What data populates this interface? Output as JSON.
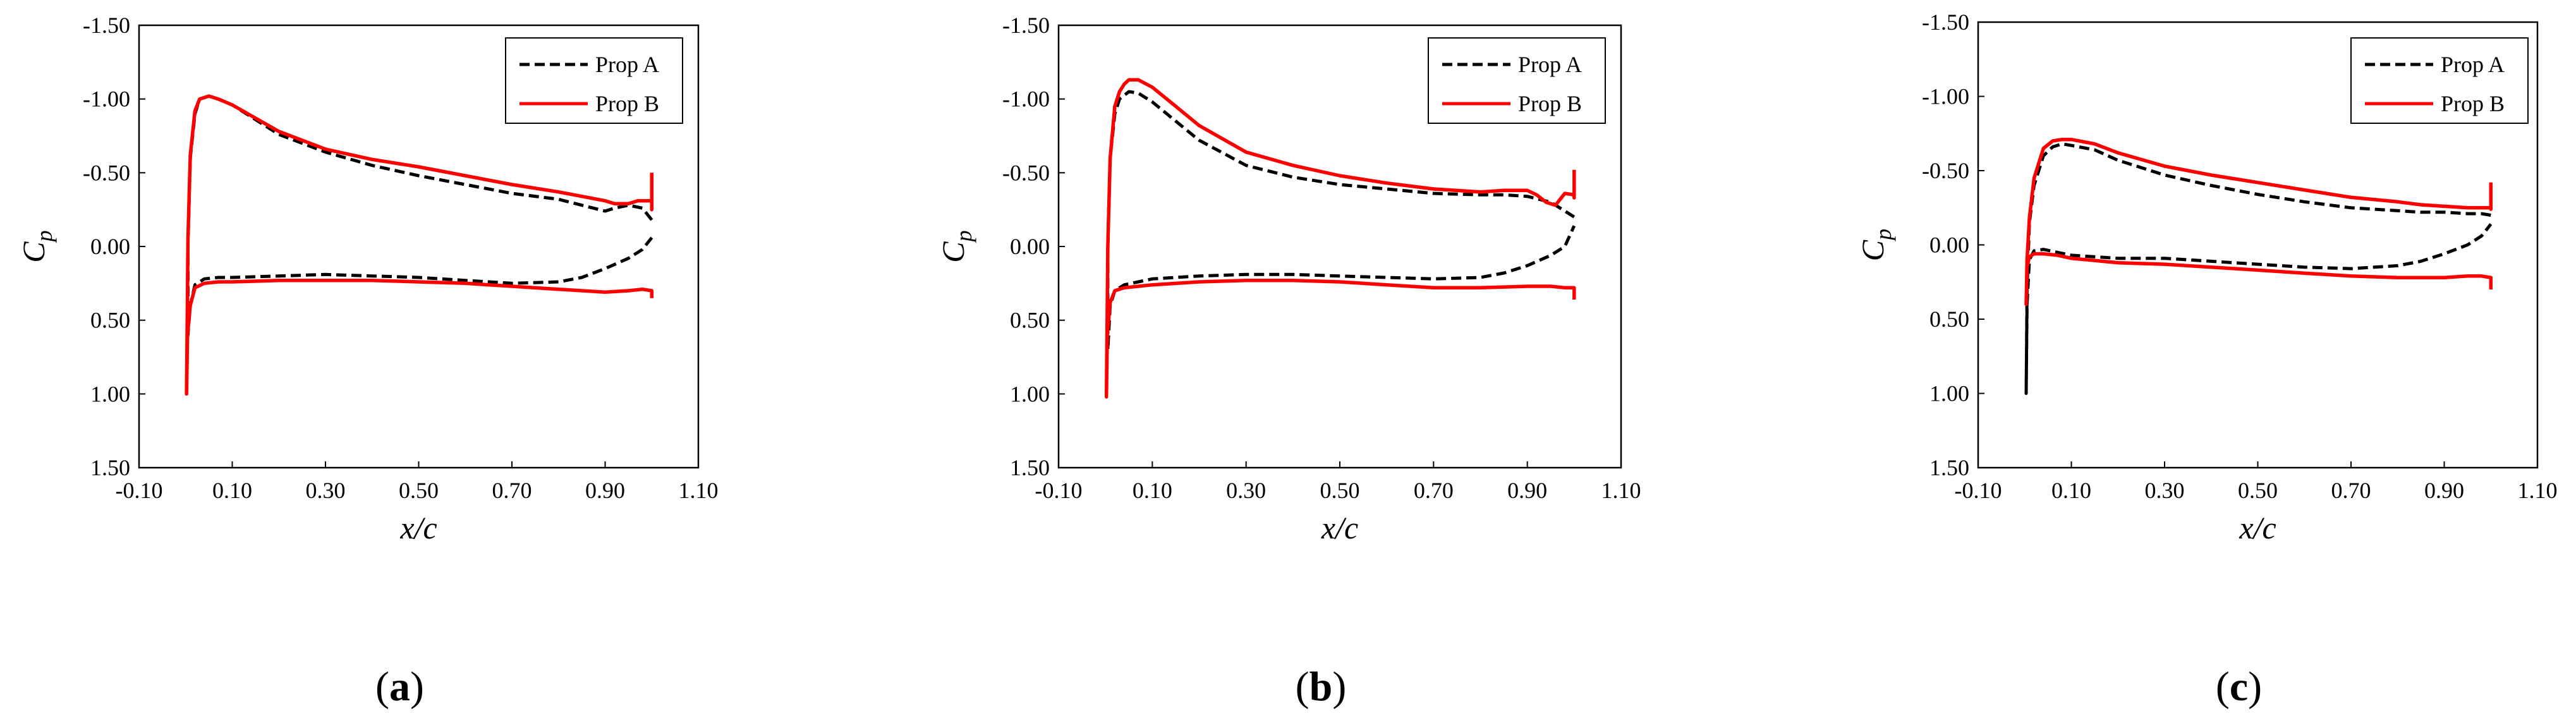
{
  "chart_data": [
    {
      "panel_label": "(a)",
      "panel_letter": "a",
      "type": "line",
      "xlabel": "x/c",
      "ylabel": "C_p",
      "ylabel_main": "C",
      "ylabel_sub": "p",
      "xlim": [
        -0.1,
        1.1
      ],
      "ylim": [
        1.5,
        -1.5
      ],
      "y_inverted": true,
      "xticks": [
        -0.1,
        0.1,
        0.3,
        0.5,
        0.7,
        0.9,
        1.1
      ],
      "xtick_labels": [
        "-0.10",
        "0.10",
        "0.30",
        "0.50",
        "0.70",
        "0.90",
        "1.10"
      ],
      "yticks": [
        -1.5,
        -1.0,
        -0.5,
        0.0,
        0.5,
        1.0,
        1.5
      ],
      "ytick_labels": [
        "-1.50",
        "-1.00",
        "-0.50",
        "0.00",
        "0.50",
        "1.00",
        "1.50"
      ],
      "legend": [
        "Prop A",
        "Prop B"
      ],
      "legend_position": "top-right",
      "series": [
        {
          "name": "Prop A",
          "style": "dashed",
          "color": "#000000",
          "x": [
            1.0,
            0.98,
            0.95,
            0.92,
            0.9,
            0.85,
            0.8,
            0.7,
            0.6,
            0.5,
            0.4,
            0.3,
            0.2,
            0.15,
            0.1,
            0.07,
            0.05,
            0.03,
            0.02,
            0.01,
            0.005,
            0.005,
            0.01,
            0.02,
            0.04,
            0.07,
            0.1,
            0.2,
            0.3,
            0.4,
            0.5,
            0.6,
            0.7,
            0.8,
            0.85,
            0.9,
            0.95,
            0.98,
            1.0
          ],
          "y": [
            -0.18,
            -0.26,
            -0.28,
            -0.26,
            -0.24,
            -0.28,
            -0.32,
            -0.36,
            -0.42,
            -0.48,
            -0.55,
            -0.64,
            -0.76,
            -0.86,
            -0.96,
            -1.0,
            -1.02,
            -1.0,
            -0.9,
            -0.6,
            0.0,
            0.6,
            0.4,
            0.26,
            0.22,
            0.21,
            0.21,
            0.2,
            0.19,
            0.2,
            0.21,
            0.23,
            0.25,
            0.24,
            0.21,
            0.15,
            0.08,
            0.02,
            -0.06
          ]
        },
        {
          "name": "Prop B",
          "style": "solid",
          "color": "#ff0000",
          "x": [
            1.0,
            1.0,
            1.0,
            0.97,
            0.95,
            0.92,
            0.9,
            0.85,
            0.8,
            0.7,
            0.6,
            0.5,
            0.4,
            0.3,
            0.2,
            0.15,
            0.1,
            0.07,
            0.05,
            0.03,
            0.02,
            0.01,
            0.005,
            0.002,
            0.004,
            0.01,
            0.02,
            0.04,
            0.07,
            0.1,
            0.2,
            0.3,
            0.4,
            0.5,
            0.6,
            0.7,
            0.8,
            0.9,
            0.95,
            0.98,
            1.0,
            1.0
          ],
          "y": [
            -0.5,
            -0.25,
            -0.31,
            -0.31,
            -0.29,
            -0.29,
            -0.31,
            -0.34,
            -0.37,
            -0.42,
            -0.48,
            -0.54,
            -0.59,
            -0.66,
            -0.78,
            -0.87,
            -0.96,
            -1.0,
            -1.02,
            -1.0,
            -0.92,
            -0.62,
            -0.05,
            1.0,
            0.6,
            0.4,
            0.28,
            0.25,
            0.24,
            0.24,
            0.23,
            0.23,
            0.23,
            0.24,
            0.25,
            0.27,
            0.29,
            0.31,
            0.3,
            0.29,
            0.3,
            0.35
          ]
        }
      ]
    },
    {
      "panel_label": "(b)",
      "panel_letter": "b",
      "type": "line",
      "xlabel": "x/c",
      "ylabel": "C_p",
      "ylabel_main": "C",
      "ylabel_sub": "p",
      "xlim": [
        -0.1,
        1.1
      ],
      "ylim": [
        1.5,
        -1.5
      ],
      "y_inverted": true,
      "xticks": [
        -0.1,
        0.1,
        0.3,
        0.5,
        0.7,
        0.9,
        1.1
      ],
      "xtick_labels": [
        "-0.10",
        "0.10",
        "0.30",
        "0.50",
        "0.70",
        "0.90",
        "1.10"
      ],
      "yticks": [
        -1.5,
        -1.0,
        -0.5,
        0.0,
        0.5,
        1.0,
        1.5
      ],
      "ytick_labels": [
        "-1.50",
        "-1.00",
        "-0.50",
        "0.00",
        "0.50",
        "1.00",
        "1.50"
      ],
      "legend": [
        "Prop A",
        "Prop B"
      ],
      "legend_position": "top-right",
      "series": [
        {
          "name": "Prop A",
          "style": "dashed",
          "color": "#000000",
          "x": [
            1.0,
            0.97,
            0.95,
            0.9,
            0.85,
            0.8,
            0.7,
            0.6,
            0.5,
            0.4,
            0.3,
            0.2,
            0.15,
            0.1,
            0.07,
            0.05,
            0.03,
            0.02,
            0.01,
            0.005,
            0.005,
            0.01,
            0.02,
            0.04,
            0.07,
            0.1,
            0.2,
            0.3,
            0.4,
            0.5,
            0.6,
            0.7,
            0.8,
            0.85,
            0.9,
            0.95,
            0.98,
            1.0
          ],
          "y": [
            -0.2,
            -0.26,
            -0.3,
            -0.34,
            -0.35,
            -0.35,
            -0.36,
            -0.39,
            -0.42,
            -0.47,
            -0.55,
            -0.72,
            -0.85,
            -0.98,
            -1.04,
            -1.05,
            -1.0,
            -0.9,
            -0.6,
            0.0,
            0.7,
            0.4,
            0.3,
            0.26,
            0.24,
            0.22,
            0.2,
            0.19,
            0.19,
            0.2,
            0.21,
            0.22,
            0.21,
            0.18,
            0.13,
            0.06,
            0.0,
            -0.14
          ]
        },
        {
          "name": "Prop B",
          "style": "solid",
          "color": "#ff0000",
          "x": [
            1.0,
            1.0,
            1.0,
            0.98,
            0.96,
            0.94,
            0.92,
            0.9,
            0.85,
            0.8,
            0.7,
            0.6,
            0.5,
            0.4,
            0.3,
            0.2,
            0.15,
            0.1,
            0.07,
            0.05,
            0.04,
            0.03,
            0.02,
            0.01,
            0.005,
            0.002,
            0.004,
            0.01,
            0.02,
            0.04,
            0.07,
            0.1,
            0.2,
            0.3,
            0.4,
            0.5,
            0.6,
            0.7,
            0.8,
            0.9,
            0.95,
            0.98,
            1.0,
            1.0
          ],
          "y": [
            -0.52,
            -0.33,
            -0.35,
            -0.36,
            -0.28,
            -0.3,
            -0.35,
            -0.38,
            -0.38,
            -0.37,
            -0.39,
            -0.43,
            -0.48,
            -0.55,
            -0.64,
            -0.82,
            -0.95,
            -1.08,
            -1.13,
            -1.13,
            -1.1,
            -1.05,
            -0.95,
            -0.6,
            0.0,
            1.02,
            0.6,
            0.38,
            0.3,
            0.28,
            0.27,
            0.26,
            0.24,
            0.23,
            0.23,
            0.24,
            0.26,
            0.28,
            0.28,
            0.27,
            0.27,
            0.28,
            0.28,
            0.36
          ]
        }
      ]
    },
    {
      "panel_label": "(c)",
      "panel_letter": "c",
      "type": "line",
      "xlabel": "x/c",
      "ylabel": "C_p",
      "ylabel_main": "C",
      "ylabel_sub": "p",
      "xlim": [
        -0.1,
        1.1
      ],
      "ylim": [
        1.5,
        -1.5
      ],
      "y_inverted": true,
      "xticks": [
        -0.1,
        0.1,
        0.3,
        0.5,
        0.7,
        0.9,
        1.1
      ],
      "xtick_labels": [
        "-0.10",
        "0.10",
        "0.30",
        "0.50",
        "0.70",
        "0.90",
        "1.10"
      ],
      "yticks": [
        -1.5,
        -1.0,
        -0.5,
        0.0,
        0.5,
        1.0,
        1.5
      ],
      "ytick_labels": [
        "-1.50",
        "-1.00",
        "-0.50",
        "0.00",
        "0.50",
        "1.00",
        "1.50"
      ],
      "legend": [
        "Prop A",
        "Prop B"
      ],
      "legend_position": "top-right",
      "series": [
        {
          "name": "Prop A",
          "style": "dashed",
          "color": "#000000",
          "x": [
            1.0,
            0.98,
            0.95,
            0.9,
            0.85,
            0.8,
            0.7,
            0.6,
            0.5,
            0.4,
            0.3,
            0.2,
            0.15,
            0.1,
            0.08,
            0.06,
            0.04,
            0.02,
            0.01,
            0.005,
            0.003,
            0.005,
            0.01,
            0.02,
            0.04,
            0.07,
            0.1,
            0.2,
            0.3,
            0.4,
            0.5,
            0.6,
            0.7,
            0.8,
            0.85,
            0.9,
            0.95,
            0.98,
            1.0
          ],
          "y": [
            -0.2,
            -0.21,
            -0.21,
            -0.22,
            -0.22,
            -0.23,
            -0.25,
            -0.29,
            -0.34,
            -0.4,
            -0.47,
            -0.57,
            -0.64,
            -0.67,
            -0.68,
            -0.66,
            -0.6,
            -0.4,
            -0.15,
            0.3,
            1.0,
            0.4,
            0.1,
            0.04,
            0.03,
            0.05,
            0.07,
            0.09,
            0.09,
            0.11,
            0.13,
            0.15,
            0.16,
            0.14,
            0.11,
            0.06,
            0.0,
            -0.06,
            -0.14
          ]
        },
        {
          "name": "Prop B",
          "style": "solid",
          "color": "#ff0000",
          "x": [
            1.0,
            1.0,
            1.0,
            0.98,
            0.95,
            0.9,
            0.85,
            0.8,
            0.7,
            0.6,
            0.5,
            0.4,
            0.3,
            0.2,
            0.15,
            0.1,
            0.08,
            0.06,
            0.04,
            0.02,
            0.01,
            0.005,
            0.003,
            0.005,
            0.01,
            0.02,
            0.04,
            0.07,
            0.1,
            0.2,
            0.3,
            0.4,
            0.5,
            0.6,
            0.7,
            0.8,
            0.9,
            0.95,
            0.98,
            1.0,
            1.0
          ],
          "y": [
            -0.42,
            -0.24,
            -0.25,
            -0.25,
            -0.25,
            -0.26,
            -0.27,
            -0.29,
            -0.32,
            -0.37,
            -0.42,
            -0.47,
            -0.53,
            -0.62,
            -0.68,
            -0.71,
            -0.71,
            -0.7,
            -0.65,
            -0.45,
            -0.18,
            0.1,
            0.4,
            0.15,
            0.08,
            0.06,
            0.06,
            0.07,
            0.09,
            0.12,
            0.13,
            0.15,
            0.17,
            0.19,
            0.21,
            0.22,
            0.22,
            0.21,
            0.21,
            0.22,
            0.3
          ]
        }
      ]
    }
  ]
}
